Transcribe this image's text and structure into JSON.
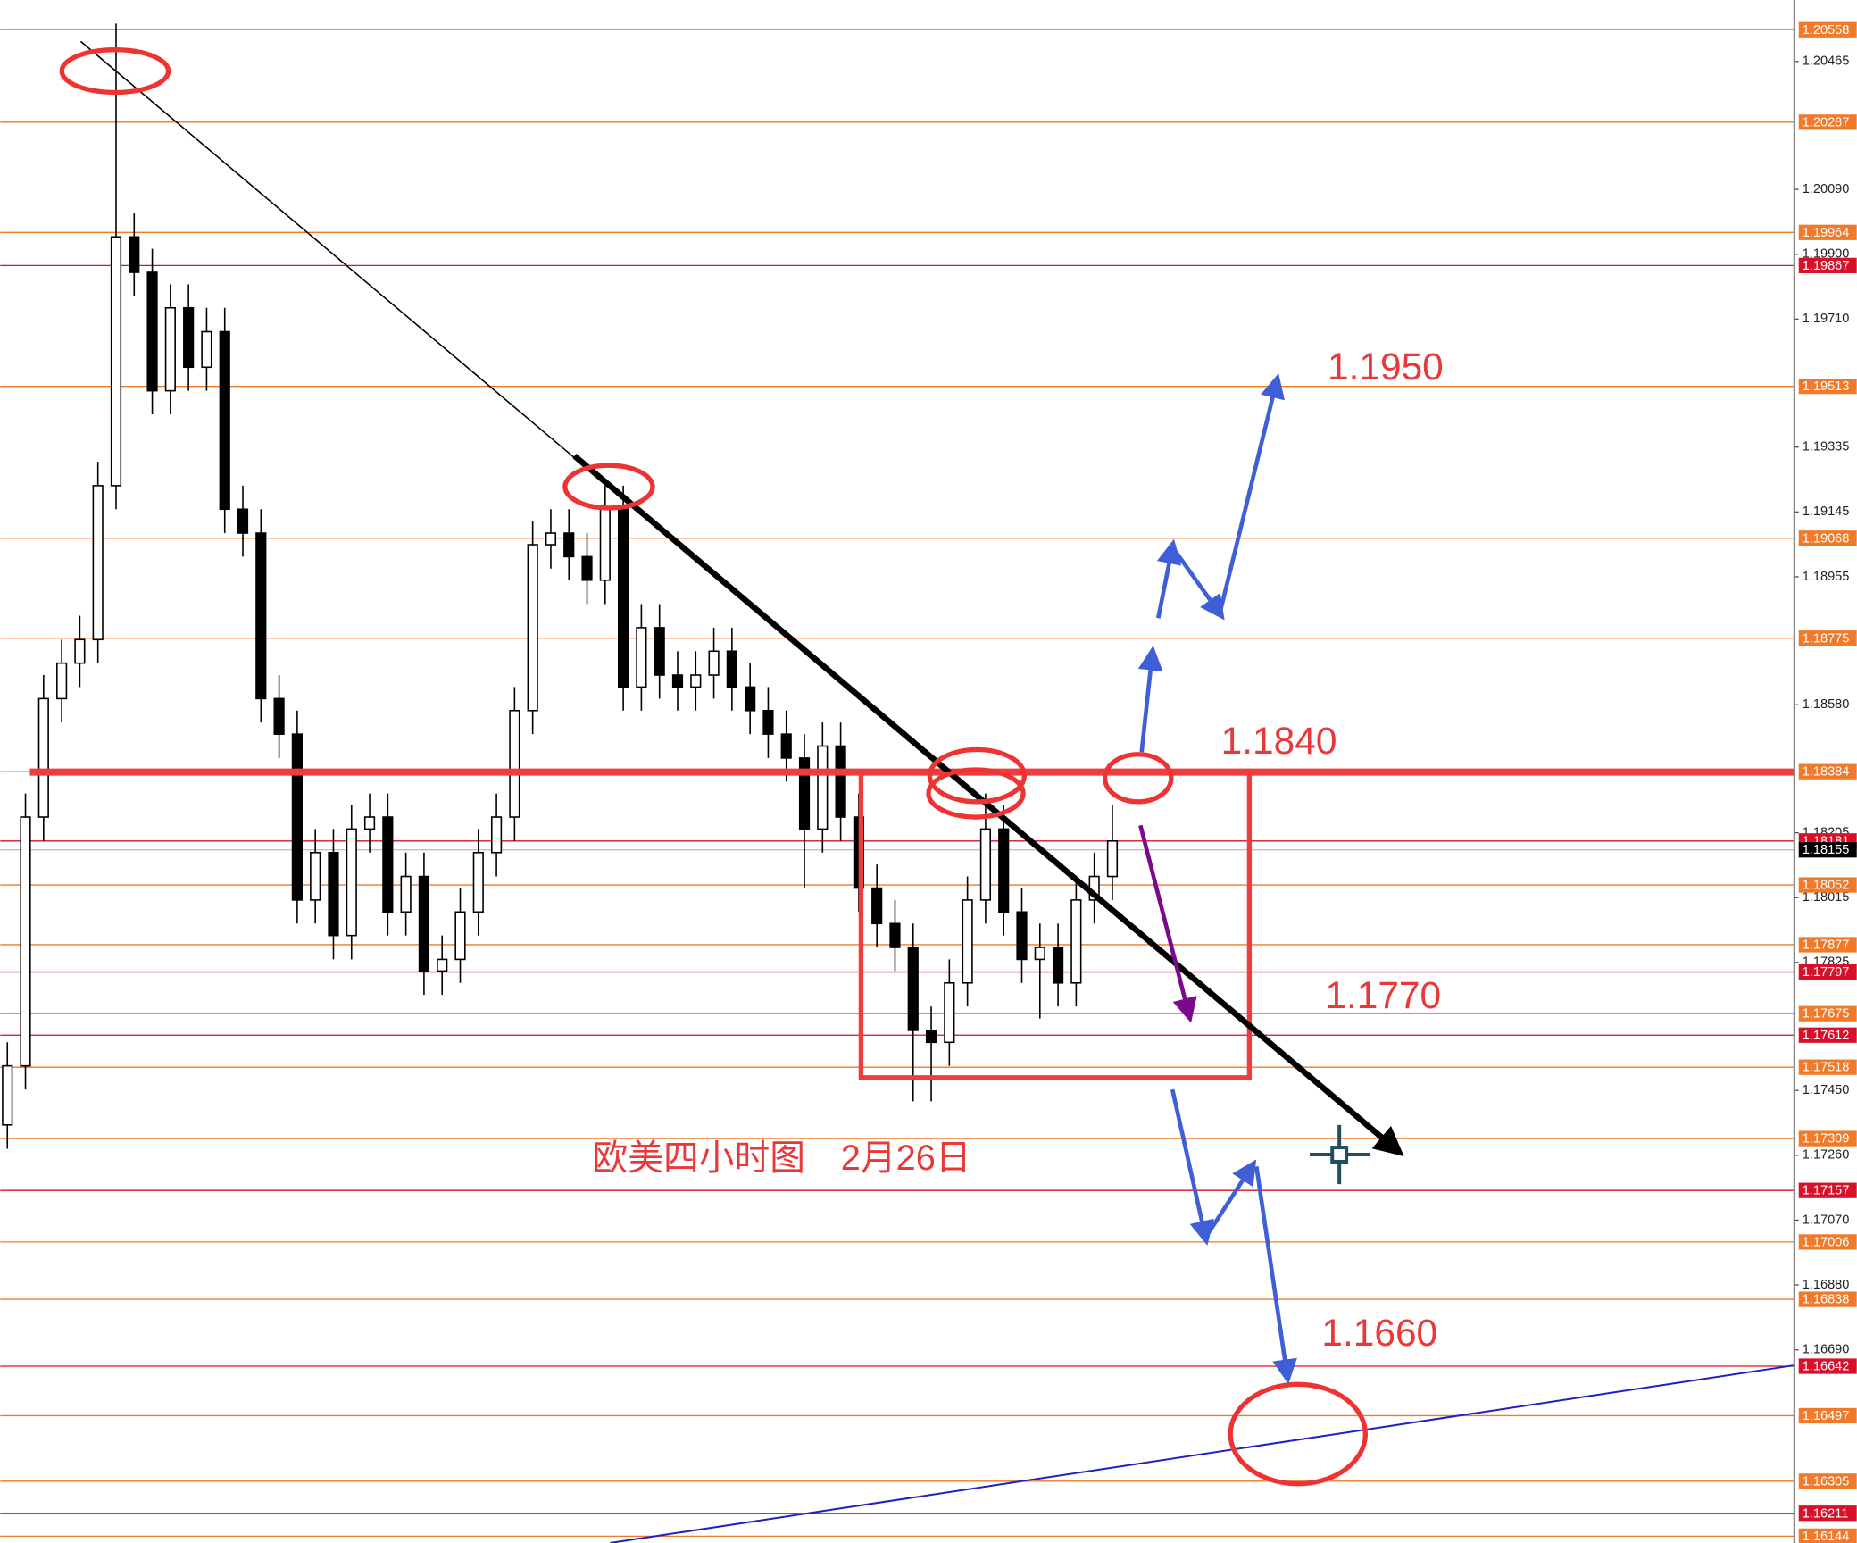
{
  "chart_data": {
    "type": "candlestick",
    "title": "欧美四小时图　2月26日",
    "annotations": [
      "1.1950",
      "1.1840",
      "1.1770",
      "1.1660"
    ],
    "ylim": [
      1.16124,
      1.20645
    ],
    "yticks": [
      1.20465,
      {
        "value": 1.2009,
        "label": "1.20090"
      },
      {
        "value": 1.199,
        "label": "1.19900"
      },
      {
        "value": 1.1971,
        "label": "1.19710"
      },
      1.19335,
      1.19145,
      1.18955,
      {
        "value": 1.1858,
        "label": "1.18580"
      },
      1.18205,
      1.18015,
      1.17825,
      {
        "value": 1.1745,
        "label": "1.17450"
      },
      {
        "value": 1.1726,
        "label": "1.17260"
      },
      {
        "value": 1.1707,
        "label": "1.17070"
      },
      {
        "value": 1.1688,
        "label": "1.16880"
      },
      {
        "value": 1.1669,
        "label": "1.16690"
      }
    ],
    "levels": [
      {
        "value": 1.20558,
        "color": "#f07a2a"
      },
      {
        "value": 1.20287,
        "color": "#f07a2a"
      },
      {
        "value": 1.19964,
        "color": "#f07a2a"
      },
      {
        "value": 1.19867,
        "color": "#d8102a"
      },
      {
        "value": 1.19513,
        "color": "#f07a2a"
      },
      {
        "value": 1.19068,
        "color": "#f07a2a"
      },
      {
        "value": 1.18775,
        "color": "#f07a2a"
      },
      {
        "value": 1.18384,
        "color": "#f07a2a"
      },
      {
        "value": 1.18181,
        "color": "#d8102a"
      },
      {
        "value": 1.18052,
        "color": "#f07a2a"
      },
      {
        "value": 1.17877,
        "color": "#f07a2a"
      },
      {
        "value": 1.17797,
        "color": "#d8102a"
      },
      {
        "value": 1.17675,
        "color": "#f07a2a"
      },
      {
        "value": 1.17612,
        "color": "#d8102a"
      },
      {
        "value": 1.17518,
        "color": "#f07a2a"
      },
      {
        "value": 1.17309,
        "color": "#f07a2a"
      },
      {
        "value": 1.17157,
        "color": "#d8102a"
      },
      {
        "value": 1.17006,
        "color": "#f07a2a"
      },
      {
        "value": 1.16838,
        "color": "#f07a2a"
      },
      {
        "value": 1.16642,
        "color": "#d8102a"
      },
      {
        "value": 1.16497,
        "color": "#f07a2a"
      },
      {
        "value": 1.16305,
        "color": "#f07a2a"
      },
      {
        "value": 1.16211,
        "color": "#d8102a"
      },
      {
        "value": 1.16144,
        "color": "#f07a2a"
      }
    ],
    "current_price": 1.18155,
    "ohlc": [
      [
        1.17349,
        1.17591,
        1.17279,
        1.17522
      ],
      [
        1.17522,
        1.1832,
        1.17453,
        1.18251
      ],
      [
        1.18251,
        1.18667,
        1.18181,
        1.18598
      ],
      [
        1.18598,
        1.18771,
        1.18528,
        1.18702
      ],
      [
        1.18702,
        1.18841,
        1.18632,
        1.18771
      ],
      [
        1.18771,
        1.19292,
        1.18702,
        1.19222
      ],
      [
        1.19222,
        1.20576,
        1.19153,
        1.19951
      ],
      [
        1.19951,
        1.2002,
        1.19778,
        1.19847
      ],
      [
        1.19847,
        1.19916,
        1.19431,
        1.195
      ],
      [
        1.195,
        1.19812,
        1.19431,
        1.19743
      ],
      [
        1.19743,
        1.19812,
        1.195,
        1.19569
      ],
      [
        1.19569,
        1.19743,
        1.195,
        1.19673
      ],
      [
        1.19673,
        1.19743,
        1.19083,
        1.19153
      ],
      [
        1.19153,
        1.19222,
        1.19014,
        1.19083
      ],
      [
        1.19083,
        1.19153,
        1.18528,
        1.18598
      ],
      [
        1.18598,
        1.18667,
        1.18424,
        1.18494
      ],
      [
        1.18494,
        1.18563,
        1.17939,
        1.18008
      ],
      [
        1.18008,
        1.18216,
        1.17939,
        1.18147
      ],
      [
        1.18147,
        1.18216,
        1.17834,
        1.17904
      ],
      [
        1.17904,
        1.18285,
        1.17834,
        1.18216
      ],
      [
        1.18216,
        1.1832,
        1.18147,
        1.18251
      ],
      [
        1.18251,
        1.1832,
        1.17904,
        1.17973
      ],
      [
        1.17973,
        1.18147,
        1.17904,
        1.18077
      ],
      [
        1.18077,
        1.18147,
        1.1773,
        1.178
      ],
      [
        1.178,
        1.17904,
        1.1773,
        1.17834
      ],
      [
        1.17834,
        1.18043,
        1.17765,
        1.17973
      ],
      [
        1.17973,
        1.18216,
        1.17904,
        1.18147
      ],
      [
        1.18147,
        1.1832,
        1.18077,
        1.18251
      ],
      [
        1.18251,
        1.18632,
        1.18181,
        1.18563
      ],
      [
        1.18563,
        1.19118,
        1.18494,
        1.19049
      ],
      [
        1.19049,
        1.19153,
        1.18979,
        1.19083
      ],
      [
        1.19083,
        1.19153,
        1.18945,
        1.19014
      ],
      [
        1.19014,
        1.19083,
        1.18875,
        1.18945
      ],
      [
        1.18945,
        1.19222,
        1.18875,
        1.19153
      ],
      [
        1.19153,
        1.19222,
        1.18563,
        1.18632
      ],
      [
        1.18632,
        1.18875,
        1.18563,
        1.18806
      ],
      [
        1.18806,
        1.18875,
        1.18598,
        1.18667
      ],
      [
        1.18667,
        1.18737,
        1.18563,
        1.18632
      ],
      [
        1.18632,
        1.18737,
        1.18563,
        1.18667
      ],
      [
        1.18667,
        1.18806,
        1.18598,
        1.18737
      ],
      [
        1.18737,
        1.18806,
        1.18563,
        1.18632
      ],
      [
        1.18632,
        1.18702,
        1.18494,
        1.18563
      ],
      [
        1.18563,
        1.18632,
        1.18424,
        1.18494
      ],
      [
        1.18494,
        1.18563,
        1.18355,
        1.18424
      ],
      [
        1.18424,
        1.18494,
        1.18043,
        1.18216
      ],
      [
        1.18216,
        1.18528,
        1.18147,
        1.18459
      ],
      [
        1.18459,
        1.18528,
        1.18181,
        1.18251
      ],
      [
        1.18251,
        1.1832,
        1.17973,
        1.18043
      ],
      [
        1.18043,
        1.18112,
        1.17869,
        1.17939
      ],
      [
        1.17939,
        1.18008,
        1.178,
        1.17869
      ],
      [
        1.17869,
        1.17939,
        1.17418,
        1.17626
      ],
      [
        1.17626,
        1.17696,
        1.17418,
        1.17591
      ],
      [
        1.17591,
        1.17834,
        1.17522,
        1.17765
      ],
      [
        1.17765,
        1.18077,
        1.17696,
        1.18008
      ],
      [
        1.18008,
        1.1832,
        1.17939,
        1.18216
      ],
      [
        1.18216,
        1.18285,
        1.17904,
        1.17973
      ],
      [
        1.17973,
        1.18043,
        1.17765,
        1.17834
      ],
      [
        1.17834,
        1.17939,
        1.17661,
        1.17869
      ],
      [
        1.17869,
        1.17939,
        1.17696,
        1.17765
      ],
      [
        1.17765,
        1.18077,
        1.17696,
        1.18008
      ],
      [
        1.18008,
        1.18147,
        1.17939,
        1.18077
      ],
      [
        1.18077,
        1.18285,
        1.18008,
        1.18181
      ]
    ]
  }
}
